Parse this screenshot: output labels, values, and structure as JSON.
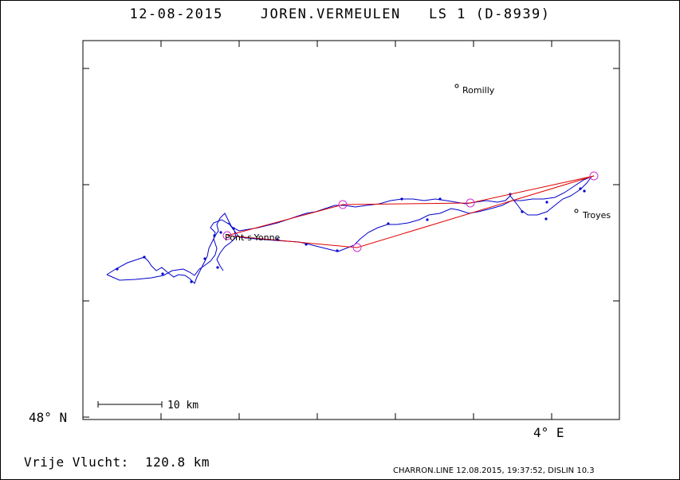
{
  "header": {
    "title": "12-08-2015    JOREN.VERMEULEN   LS 1 (D-8939)"
  },
  "map": {
    "latitude_label": "48° N",
    "longitude_label": "4° E",
    "scale_bar_label": "10 km",
    "towns": [
      {
        "name": "Romilly"
      },
      {
        "name": "Troyes"
      },
      {
        "name": "Pont-s-Yonne"
      }
    ],
    "colors": {
      "track": "#0000cc",
      "task_line": "#e00000",
      "turnpoint": "#cc33cc",
      "frame": "#000000"
    }
  },
  "stats": {
    "distance_text": "Vrije Vlucht:  120.8 km"
  },
  "footer": {
    "credit": "CHARRON.LINE 12.08.2015, 19:37:52, DISLIN 10.3"
  }
}
